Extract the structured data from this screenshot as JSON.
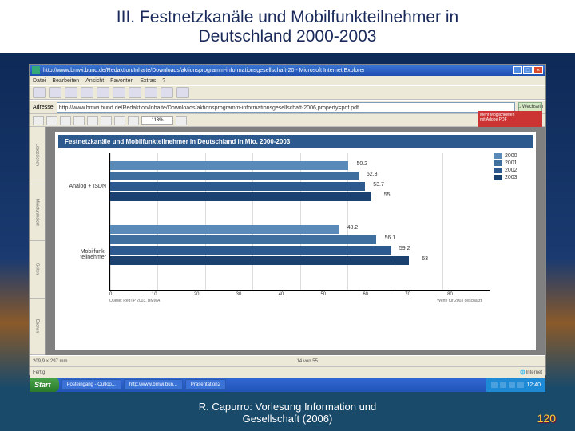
{
  "slide": {
    "title_line1": "III. Festnetzkanäle und Mobilfunkteilnehmer in",
    "title_line2": "Deutschland 2000-2003",
    "footer_line1": "R. Capurro: Vorlesung Information und",
    "footer_line2": "Gesellschaft (2006)",
    "page_number": "120"
  },
  "ie": {
    "title": "http://www.bmwi.bund.de/Redaktion/Inhalte/Downloads/aktionsprogramm-informationsgesellschaft-20 - Microsoft Internet Explorer",
    "menu": [
      "Datei",
      "Bearbeiten",
      "Ansicht",
      "Favoriten",
      "Extras",
      "?"
    ],
    "address_label": "Adresse",
    "address_url": "http://www.bmwi.bund.de/Redaktion/Inhalte/Downloads/aktionsprogramm-informationsgesellschaft-2006,property=pdf.pdf",
    "go_label": "Wechseln",
    "status_left": "Fertig",
    "status_right": "Internet"
  },
  "pdf": {
    "zoom": "113%",
    "tabs": [
      "Lesezeichen",
      "Miniaturansicht",
      "Seiten",
      "Ebenen"
    ],
    "status_size": "209,9 × 297 mm",
    "status_page": "14 von 55",
    "adobe_l1": "Mehr Möglichkeiten",
    "adobe_l2": "mit Adobe PDF"
  },
  "chart": {
    "title": "Festnetzkanäle und Mobilfunkteilnehmer in Deutschland in Mio. 2000-2003",
    "groups": [
      {
        "label": "Analog + ISDN",
        "values": [
          50.2,
          52.3,
          53.7,
          55
        ]
      },
      {
        "label": "Mobilfunk-teilnehmer",
        "values": [
          48.2,
          56.1,
          59.2,
          63
        ]
      }
    ],
    "x_max": 80,
    "x_ticks": [
      0,
      10,
      20,
      30,
      40,
      50,
      60,
      70,
      80
    ],
    "legend_years": [
      "2000",
      "2001",
      "2002",
      "2003"
    ],
    "colors": [
      "#5a8ab8",
      "#3e6f9e",
      "#2c5a8e",
      "#1a4170"
    ],
    "foot_left": "Quelle: RegTP 2003, BMWA",
    "foot_right": "Werte für 2003 geschätzt",
    "title_bg": "#2c5a8e",
    "title_fontsize": 8,
    "label_fontsize": 7,
    "bg": "#ffffff",
    "grid_color": "#dddddd"
  },
  "taskbar": {
    "start": "Start",
    "tasks": [
      "Posteingang - Outloo...",
      "http://www.bmwi.bun...",
      "Präsentation2"
    ],
    "time": "12:40"
  }
}
